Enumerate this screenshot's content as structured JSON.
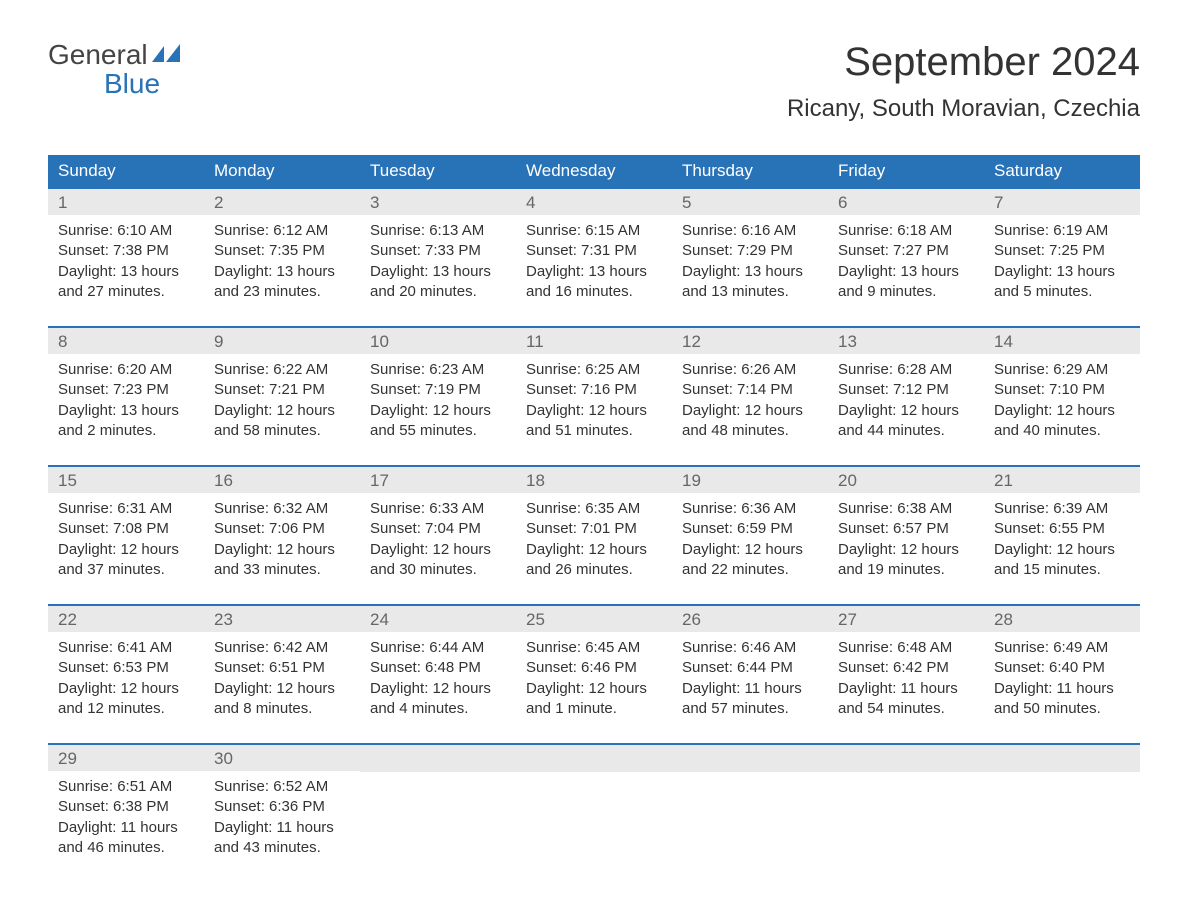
{
  "brand": {
    "line1": "General",
    "line2": "Blue",
    "line1_color": "#444444",
    "line2_color": "#2873b8",
    "flag_color": "#2873b8"
  },
  "title": {
    "month_year": "September 2024",
    "location": "Ricany, South Moravian, Czechia",
    "month_fontsize": 40,
    "location_fontsize": 24,
    "text_color": "#333333"
  },
  "styling": {
    "background_color": "#ffffff",
    "header_row_bg": "#2873b8",
    "header_row_text": "#ffffff",
    "day_number_bg": "#e9e9e9",
    "day_number_color": "#666666",
    "body_text_color": "#333333",
    "week_border_color": "#2873b8",
    "body_fontsize": 15,
    "header_fontsize": 17,
    "columns": 7
  },
  "days_of_week": [
    "Sunday",
    "Monday",
    "Tuesday",
    "Wednesday",
    "Thursday",
    "Friday",
    "Saturday"
  ],
  "weeks": [
    [
      {
        "day": "1",
        "sunrise": "Sunrise: 6:10 AM",
        "sunset": "Sunset: 7:38 PM",
        "daylight1": "Daylight: 13 hours",
        "daylight2": "and 27 minutes."
      },
      {
        "day": "2",
        "sunrise": "Sunrise: 6:12 AM",
        "sunset": "Sunset: 7:35 PM",
        "daylight1": "Daylight: 13 hours",
        "daylight2": "and 23 minutes."
      },
      {
        "day": "3",
        "sunrise": "Sunrise: 6:13 AM",
        "sunset": "Sunset: 7:33 PM",
        "daylight1": "Daylight: 13 hours",
        "daylight2": "and 20 minutes."
      },
      {
        "day": "4",
        "sunrise": "Sunrise: 6:15 AM",
        "sunset": "Sunset: 7:31 PM",
        "daylight1": "Daylight: 13 hours",
        "daylight2": "and 16 minutes."
      },
      {
        "day": "5",
        "sunrise": "Sunrise: 6:16 AM",
        "sunset": "Sunset: 7:29 PM",
        "daylight1": "Daylight: 13 hours",
        "daylight2": "and 13 minutes."
      },
      {
        "day": "6",
        "sunrise": "Sunrise: 6:18 AM",
        "sunset": "Sunset: 7:27 PM",
        "daylight1": "Daylight: 13 hours",
        "daylight2": "and 9 minutes."
      },
      {
        "day": "7",
        "sunrise": "Sunrise: 6:19 AM",
        "sunset": "Sunset: 7:25 PM",
        "daylight1": "Daylight: 13 hours",
        "daylight2": "and 5 minutes."
      }
    ],
    [
      {
        "day": "8",
        "sunrise": "Sunrise: 6:20 AM",
        "sunset": "Sunset: 7:23 PM",
        "daylight1": "Daylight: 13 hours",
        "daylight2": "and 2 minutes."
      },
      {
        "day": "9",
        "sunrise": "Sunrise: 6:22 AM",
        "sunset": "Sunset: 7:21 PM",
        "daylight1": "Daylight: 12 hours",
        "daylight2": "and 58 minutes."
      },
      {
        "day": "10",
        "sunrise": "Sunrise: 6:23 AM",
        "sunset": "Sunset: 7:19 PM",
        "daylight1": "Daylight: 12 hours",
        "daylight2": "and 55 minutes."
      },
      {
        "day": "11",
        "sunrise": "Sunrise: 6:25 AM",
        "sunset": "Sunset: 7:16 PM",
        "daylight1": "Daylight: 12 hours",
        "daylight2": "and 51 minutes."
      },
      {
        "day": "12",
        "sunrise": "Sunrise: 6:26 AM",
        "sunset": "Sunset: 7:14 PM",
        "daylight1": "Daylight: 12 hours",
        "daylight2": "and 48 minutes."
      },
      {
        "day": "13",
        "sunrise": "Sunrise: 6:28 AM",
        "sunset": "Sunset: 7:12 PM",
        "daylight1": "Daylight: 12 hours",
        "daylight2": "and 44 minutes."
      },
      {
        "day": "14",
        "sunrise": "Sunrise: 6:29 AM",
        "sunset": "Sunset: 7:10 PM",
        "daylight1": "Daylight: 12 hours",
        "daylight2": "and 40 minutes."
      }
    ],
    [
      {
        "day": "15",
        "sunrise": "Sunrise: 6:31 AM",
        "sunset": "Sunset: 7:08 PM",
        "daylight1": "Daylight: 12 hours",
        "daylight2": "and 37 minutes."
      },
      {
        "day": "16",
        "sunrise": "Sunrise: 6:32 AM",
        "sunset": "Sunset: 7:06 PM",
        "daylight1": "Daylight: 12 hours",
        "daylight2": "and 33 minutes."
      },
      {
        "day": "17",
        "sunrise": "Sunrise: 6:33 AM",
        "sunset": "Sunset: 7:04 PM",
        "daylight1": "Daylight: 12 hours",
        "daylight2": "and 30 minutes."
      },
      {
        "day": "18",
        "sunrise": "Sunrise: 6:35 AM",
        "sunset": "Sunset: 7:01 PM",
        "daylight1": "Daylight: 12 hours",
        "daylight2": "and 26 minutes."
      },
      {
        "day": "19",
        "sunrise": "Sunrise: 6:36 AM",
        "sunset": "Sunset: 6:59 PM",
        "daylight1": "Daylight: 12 hours",
        "daylight2": "and 22 minutes."
      },
      {
        "day": "20",
        "sunrise": "Sunrise: 6:38 AM",
        "sunset": "Sunset: 6:57 PM",
        "daylight1": "Daylight: 12 hours",
        "daylight2": "and 19 minutes."
      },
      {
        "day": "21",
        "sunrise": "Sunrise: 6:39 AM",
        "sunset": "Sunset: 6:55 PM",
        "daylight1": "Daylight: 12 hours",
        "daylight2": "and 15 minutes."
      }
    ],
    [
      {
        "day": "22",
        "sunrise": "Sunrise: 6:41 AM",
        "sunset": "Sunset: 6:53 PM",
        "daylight1": "Daylight: 12 hours",
        "daylight2": "and 12 minutes."
      },
      {
        "day": "23",
        "sunrise": "Sunrise: 6:42 AM",
        "sunset": "Sunset: 6:51 PM",
        "daylight1": "Daylight: 12 hours",
        "daylight2": "and 8 minutes."
      },
      {
        "day": "24",
        "sunrise": "Sunrise: 6:44 AM",
        "sunset": "Sunset: 6:48 PM",
        "daylight1": "Daylight: 12 hours",
        "daylight2": "and 4 minutes."
      },
      {
        "day": "25",
        "sunrise": "Sunrise: 6:45 AM",
        "sunset": "Sunset: 6:46 PM",
        "daylight1": "Daylight: 12 hours",
        "daylight2": "and 1 minute."
      },
      {
        "day": "26",
        "sunrise": "Sunrise: 6:46 AM",
        "sunset": "Sunset: 6:44 PM",
        "daylight1": "Daylight: 11 hours",
        "daylight2": "and 57 minutes."
      },
      {
        "day": "27",
        "sunrise": "Sunrise: 6:48 AM",
        "sunset": "Sunset: 6:42 PM",
        "daylight1": "Daylight: 11 hours",
        "daylight2": "and 54 minutes."
      },
      {
        "day": "28",
        "sunrise": "Sunrise: 6:49 AM",
        "sunset": "Sunset: 6:40 PM",
        "daylight1": "Daylight: 11 hours",
        "daylight2": "and 50 minutes."
      }
    ],
    [
      {
        "day": "29",
        "sunrise": "Sunrise: 6:51 AM",
        "sunset": "Sunset: 6:38 PM",
        "daylight1": "Daylight: 11 hours",
        "daylight2": "and 46 minutes."
      },
      {
        "day": "30",
        "sunrise": "Sunrise: 6:52 AM",
        "sunset": "Sunset: 6:36 PM",
        "daylight1": "Daylight: 11 hours",
        "daylight2": "and 43 minutes."
      },
      {
        "empty": true
      },
      {
        "empty": true
      },
      {
        "empty": true
      },
      {
        "empty": true
      },
      {
        "empty": true
      }
    ]
  ]
}
